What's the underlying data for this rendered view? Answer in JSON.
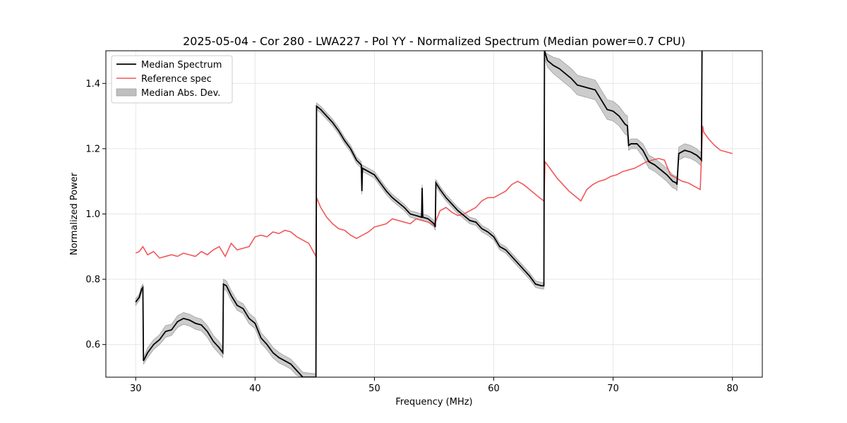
{
  "chart_data": {
    "type": "line",
    "title": "2025-05-04 - Cor 280 - LWA227 - Pol YY - Normalized Spectrum (Median power=0.7 CPU)",
    "xlabel": "Frequency (MHz)",
    "ylabel": "Normalized Power",
    "xlim": [
      27.5,
      82.5
    ],
    "ylim": [
      0.5,
      1.5
    ],
    "xticks": [
      30,
      40,
      50,
      60,
      70,
      80
    ],
    "yticks": [
      0.6,
      0.8,
      1.0,
      1.2,
      1.4
    ],
    "xtick_labels": [
      "30",
      "40",
      "50",
      "60",
      "70",
      "80"
    ],
    "ytick_labels": [
      "0.6",
      "0.8",
      "1.0",
      "1.2",
      "1.4"
    ],
    "grid": true,
    "legend_position": "upper-left",
    "legend": [
      "Median Spectrum",
      "Reference spec",
      "Median Abs. Dev."
    ],
    "colors": {
      "median": "#000000",
      "reference": "#f0585a",
      "mad_fill": "#bfbfbf",
      "mad_edge": "#a0a0a0",
      "grid": "#e6e6e6",
      "axes": "#000000"
    },
    "series": [
      {
        "name": "Median Spectrum",
        "x": [
          30.0,
          30.3,
          30.5,
          30.6,
          30.65,
          31.0,
          31.5,
          32.0,
          32.5,
          33.0,
          33.5,
          34.0,
          34.5,
          35.0,
          35.5,
          36.0,
          36.5,
          37.0,
          37.3,
          37.35,
          37.6,
          38.0,
          38.5,
          39.0,
          39.5,
          40.0,
          40.5,
          41.0,
          41.5,
          42.0,
          42.5,
          43.0,
          43.5,
          44.0,
          45.1,
          45.15,
          45.5,
          46.0,
          46.5,
          47.0,
          47.5,
          48.0,
          48.5,
          48.9,
          48.95,
          49.0,
          49.5,
          50.0,
          50.5,
          51.0,
          51.5,
          52.0,
          52.5,
          53.0,
          53.5,
          53.95,
          54.0,
          54.05,
          54.5,
          55.0,
          55.1,
          55.15,
          55.5,
          56.0,
          56.5,
          57.0,
          57.5,
          58.0,
          58.5,
          59.0,
          59.5,
          60.0,
          60.5,
          61.0,
          61.5,
          62.0,
          62.5,
          63.0,
          63.5,
          64.0,
          64.2,
          64.25,
          64.5,
          65.0,
          65.5,
          66.0,
          66.5,
          67.0,
          67.5,
          68.0,
          68.5,
          69.0,
          69.5,
          70.0,
          70.5,
          71.0,
          71.2,
          71.3,
          71.5,
          72.0,
          72.5,
          73.0,
          73.5,
          74.0,
          74.5,
          75.0,
          75.3,
          75.35,
          75.5,
          76.0,
          76.5,
          77.0,
          77.3,
          77.4,
          77.45
        ],
        "values": [
          0.73,
          0.745,
          0.77,
          0.775,
          0.55,
          0.575,
          0.6,
          0.615,
          0.64,
          0.645,
          0.67,
          0.68,
          0.675,
          0.665,
          0.66,
          0.64,
          0.61,
          0.59,
          0.575,
          0.785,
          0.78,
          0.75,
          0.72,
          0.71,
          0.68,
          0.665,
          0.62,
          0.6,
          0.575,
          0.56,
          0.55,
          0.54,
          0.52,
          0.5,
          0.5,
          1.33,
          1.32,
          1.3,
          1.28,
          1.255,
          1.225,
          1.2,
          1.165,
          1.15,
          1.07,
          1.14,
          1.13,
          1.12,
          1.095,
          1.07,
          1.05,
          1.035,
          1.02,
          1.0,
          0.995,
          0.99,
          1.08,
          0.99,
          0.985,
          0.97,
          0.96,
          1.095,
          1.075,
          1.05,
          1.03,
          1.01,
          0.995,
          0.98,
          0.975,
          0.955,
          0.945,
          0.93,
          0.9,
          0.89,
          0.87,
          0.85,
          0.83,
          0.81,
          0.785,
          0.78,
          0.78,
          1.5,
          1.47,
          1.455,
          1.445,
          1.43,
          1.415,
          1.395,
          1.39,
          1.385,
          1.38,
          1.35,
          1.32,
          1.315,
          1.3,
          1.275,
          1.27,
          1.21,
          1.215,
          1.215,
          1.195,
          1.16,
          1.15,
          1.135,
          1.12,
          1.1,
          1.095,
          1.09,
          1.185,
          1.195,
          1.19,
          1.18,
          1.17,
          1.165,
          1.5
        ]
      },
      {
        "name": "Reference spec",
        "x": [
          30.0,
          30.3,
          30.6,
          31.0,
          31.5,
          32.0,
          32.5,
          33.0,
          33.5,
          34.0,
          34.5,
          35.0,
          35.5,
          36.0,
          36.5,
          37.0,
          37.5,
          38.0,
          38.5,
          39.0,
          39.5,
          40.0,
          40.5,
          41.0,
          41.5,
          42.0,
          42.5,
          43.0,
          43.5,
          44.0,
          44.5,
          45.1,
          45.15,
          45.5,
          46.0,
          46.5,
          47.0,
          47.5,
          48.0,
          48.5,
          49.0,
          49.5,
          50.0,
          50.5,
          51.0,
          51.5,
          52.0,
          52.5,
          53.0,
          53.5,
          54.0,
          54.5,
          55.0,
          55.5,
          56.0,
          56.5,
          57.0,
          57.5,
          58.0,
          58.5,
          59.0,
          59.5,
          60.0,
          60.5,
          61.0,
          61.5,
          62.0,
          62.5,
          63.0,
          63.5,
          64.0,
          64.2,
          64.3,
          64.8,
          65.3,
          65.8,
          66.3,
          66.8,
          67.3,
          67.8,
          68.3,
          68.8,
          69.3,
          69.8,
          70.3,
          70.8,
          71.3,
          71.8,
          72.3,
          72.8,
          73.3,
          73.8,
          74.3,
          74.8,
          75.3,
          75.8,
          76.3,
          76.8,
          77.3,
          77.5,
          77.6,
          78.0,
          78.5,
          79.0,
          79.5,
          80.0
        ],
        "values": [
          0.88,
          0.885,
          0.9,
          0.875,
          0.885,
          0.865,
          0.87,
          0.875,
          0.87,
          0.88,
          0.875,
          0.87,
          0.885,
          0.875,
          0.89,
          0.9,
          0.87,
          0.91,
          0.89,
          0.895,
          0.9,
          0.93,
          0.935,
          0.93,
          0.945,
          0.94,
          0.95,
          0.945,
          0.93,
          0.92,
          0.91,
          0.87,
          1.05,
          1.02,
          0.99,
          0.97,
          0.955,
          0.95,
          0.935,
          0.925,
          0.935,
          0.945,
          0.96,
          0.965,
          0.97,
          0.985,
          0.98,
          0.975,
          0.97,
          0.985,
          0.98,
          0.975,
          0.965,
          1.01,
          1.02,
          1.005,
          0.995,
          1.0,
          1.01,
          1.02,
          1.04,
          1.05,
          1.05,
          1.06,
          1.07,
          1.09,
          1.1,
          1.09,
          1.075,
          1.06,
          1.045,
          1.04,
          1.16,
          1.135,
          1.11,
          1.09,
          1.07,
          1.055,
          1.04,
          1.075,
          1.09,
          1.1,
          1.105,
          1.115,
          1.12,
          1.13,
          1.135,
          1.14,
          1.15,
          1.16,
          1.165,
          1.17,
          1.165,
          1.12,
          1.11,
          1.1,
          1.095,
          1.085,
          1.075,
          1.27,
          1.25,
          1.23,
          1.21,
          1.195,
          1.19,
          1.185
        ]
      }
    ],
    "mad_band": {
      "name": "Median Abs. Dev.",
      "x": [
        30.0,
        30.3,
        30.5,
        30.6,
        30.65,
        31.0,
        31.5,
        32.0,
        32.5,
        33.0,
        33.5,
        34.0,
        34.5,
        35.0,
        35.5,
        36.0,
        36.5,
        37.0,
        37.3,
        37.35,
        37.6,
        38.0,
        38.5,
        39.0,
        39.5,
        40.0,
        40.5,
        41.0,
        41.5,
        42.0,
        42.5,
        43.0,
        43.5,
        44.0,
        45.1,
        45.15,
        45.5,
        46.0,
        46.5,
        47.0,
        47.5,
        48.0,
        48.5,
        48.9,
        48.95,
        49.0,
        49.5,
        50.0,
        50.5,
        51.0,
        51.5,
        52.0,
        52.5,
        53.0,
        53.5,
        53.95,
        54.0,
        54.05,
        54.5,
        55.0,
        55.1,
        55.15,
        55.5,
        56.0,
        56.5,
        57.0,
        57.5,
        58.0,
        58.5,
        59.0,
        59.5,
        60.0,
        60.5,
        61.0,
        61.5,
        62.0,
        62.5,
        63.0,
        63.5,
        64.0,
        64.2,
        64.25,
        64.5,
        65.0,
        65.5,
        66.0,
        66.5,
        67.0,
        67.5,
        68.0,
        68.5,
        69.0,
        69.5,
        70.0,
        70.5,
        71.0,
        71.2,
        71.3,
        71.5,
        72.0,
        72.5,
        73.0,
        73.5,
        74.0,
        74.5,
        75.0,
        75.3,
        75.35,
        75.5,
        76.0,
        76.5,
        77.0,
        77.3,
        77.4,
        77.45
      ],
      "lower": [
        0.72,
        0.735,
        0.76,
        0.765,
        0.54,
        0.56,
        0.585,
        0.6,
        0.622,
        0.628,
        0.652,
        0.662,
        0.657,
        0.647,
        0.642,
        0.622,
        0.592,
        0.572,
        0.56,
        0.77,
        0.765,
        0.735,
        0.705,
        0.695,
        0.664,
        0.649,
        0.604,
        0.584,
        0.559,
        0.544,
        0.535,
        0.525,
        0.505,
        0.5,
        0.5,
        1.32,
        1.31,
        1.29,
        1.27,
        1.245,
        1.215,
        1.19,
        1.155,
        1.14,
        1.06,
        1.13,
        1.12,
        1.11,
        1.085,
        1.06,
        1.04,
        1.025,
        1.01,
        0.99,
        0.985,
        0.98,
        1.07,
        0.98,
        0.975,
        0.96,
        0.95,
        1.085,
        1.065,
        1.04,
        1.02,
        1.0,
        0.985,
        0.97,
        0.965,
        0.945,
        0.935,
        0.92,
        0.89,
        0.88,
        0.86,
        0.84,
        0.82,
        0.8,
        0.775,
        0.77,
        0.77,
        1.48,
        1.45,
        1.43,
        1.415,
        1.4,
        1.385,
        1.365,
        1.36,
        1.355,
        1.35,
        1.32,
        1.29,
        1.285,
        1.27,
        1.245,
        1.24,
        1.195,
        1.2,
        1.2,
        1.175,
        1.14,
        1.13,
        1.115,
        1.1,
        1.08,
        1.075,
        1.07,
        1.165,
        1.175,
        1.17,
        1.16,
        1.15,
        1.145,
        1.48
      ],
      "upper": [
        0.74,
        0.755,
        0.78,
        0.785,
        0.56,
        0.59,
        0.615,
        0.63,
        0.658,
        0.662,
        0.688,
        0.698,
        0.693,
        0.683,
        0.678,
        0.658,
        0.628,
        0.608,
        0.59,
        0.8,
        0.795,
        0.765,
        0.735,
        0.725,
        0.696,
        0.681,
        0.636,
        0.616,
        0.591,
        0.576,
        0.565,
        0.555,
        0.535,
        0.515,
        0.51,
        1.34,
        1.33,
        1.31,
        1.29,
        1.265,
        1.235,
        1.21,
        1.175,
        1.16,
        1.08,
        1.15,
        1.14,
        1.13,
        1.105,
        1.08,
        1.06,
        1.045,
        1.03,
        1.01,
        1.005,
        1.0,
        1.09,
        1.0,
        0.995,
        0.98,
        0.97,
        1.105,
        1.085,
        1.06,
        1.04,
        1.02,
        1.005,
        0.99,
        0.985,
        0.965,
        0.955,
        0.94,
        0.91,
        0.9,
        0.88,
        0.86,
        0.84,
        0.82,
        0.795,
        0.79,
        0.79,
        1.5,
        1.49,
        1.48,
        1.475,
        1.46,
        1.445,
        1.425,
        1.42,
        1.415,
        1.41,
        1.38,
        1.35,
        1.345,
        1.33,
        1.305,
        1.3,
        1.225,
        1.23,
        1.23,
        1.215,
        1.18,
        1.17,
        1.155,
        1.14,
        1.12,
        1.115,
        1.11,
        1.205,
        1.215,
        1.21,
        1.2,
        1.19,
        1.185,
        1.5
      ]
    }
  }
}
